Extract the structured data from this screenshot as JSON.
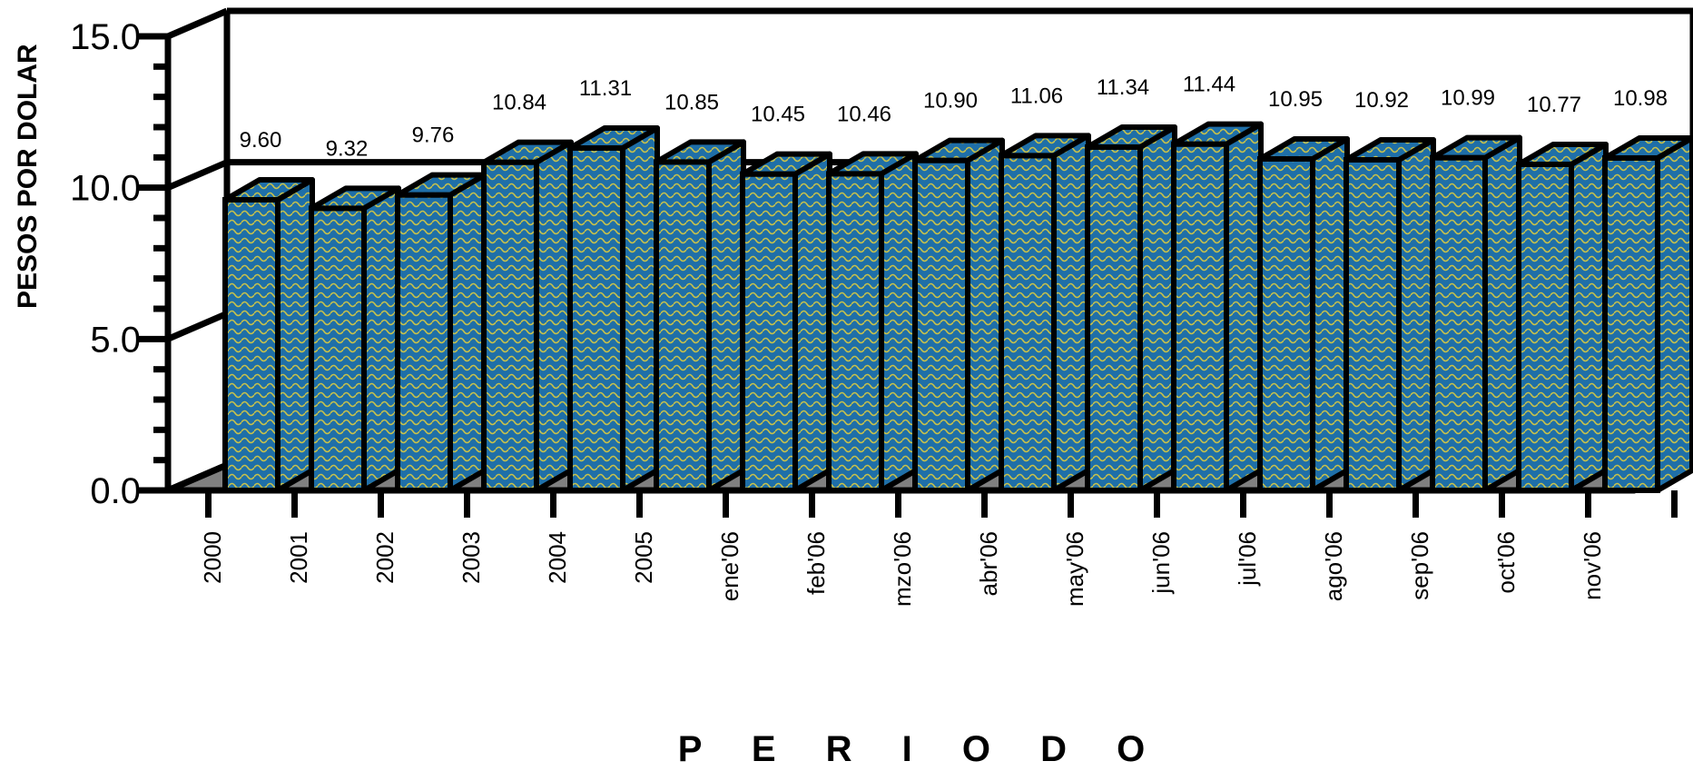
{
  "chart_data": {
    "type": "bar",
    "categories": [
      "2000",
      "2001",
      "2002",
      "2003",
      "2004",
      "2005",
      "ene'06",
      "feb'06",
      "mzo'06",
      "abr'06",
      "may'06",
      "jun'06",
      "jul'06",
      "ago'06",
      "sep'06",
      "oct'06",
      "nov'06"
    ],
    "values": [
      9.6,
      9.32,
      9.76,
      10.84,
      11.31,
      10.85,
      10.45,
      10.46,
      10.9,
      11.06,
      11.34,
      11.44,
      10.95,
      10.92,
      10.99,
      10.77,
      10.98
    ],
    "data_labels": [
      "9.60",
      "9.32",
      "9.76",
      "10.84",
      "11.31",
      "10.85",
      "10.45",
      "10.46",
      "10.90",
      "11.06",
      "11.34",
      "11.44",
      "10.95",
      "10.92",
      "10.99",
      "10.77",
      "10.98"
    ],
    "ylabel": "PESOS POR DOLAR",
    "xlabel": "P E R I O D O",
    "ylim": [
      0,
      15
    ],
    "y_ticks": [
      "0.0",
      "5.0",
      "10.0",
      "15.0"
    ],
    "y_tick_values": [
      0,
      5,
      10,
      15
    ],
    "grid": true,
    "style": "3d",
    "colors": {
      "bar_front": "#1f6fa8",
      "bar_pattern": "#c9c24a",
      "floor": "#808080",
      "outline": "#000000"
    }
  }
}
